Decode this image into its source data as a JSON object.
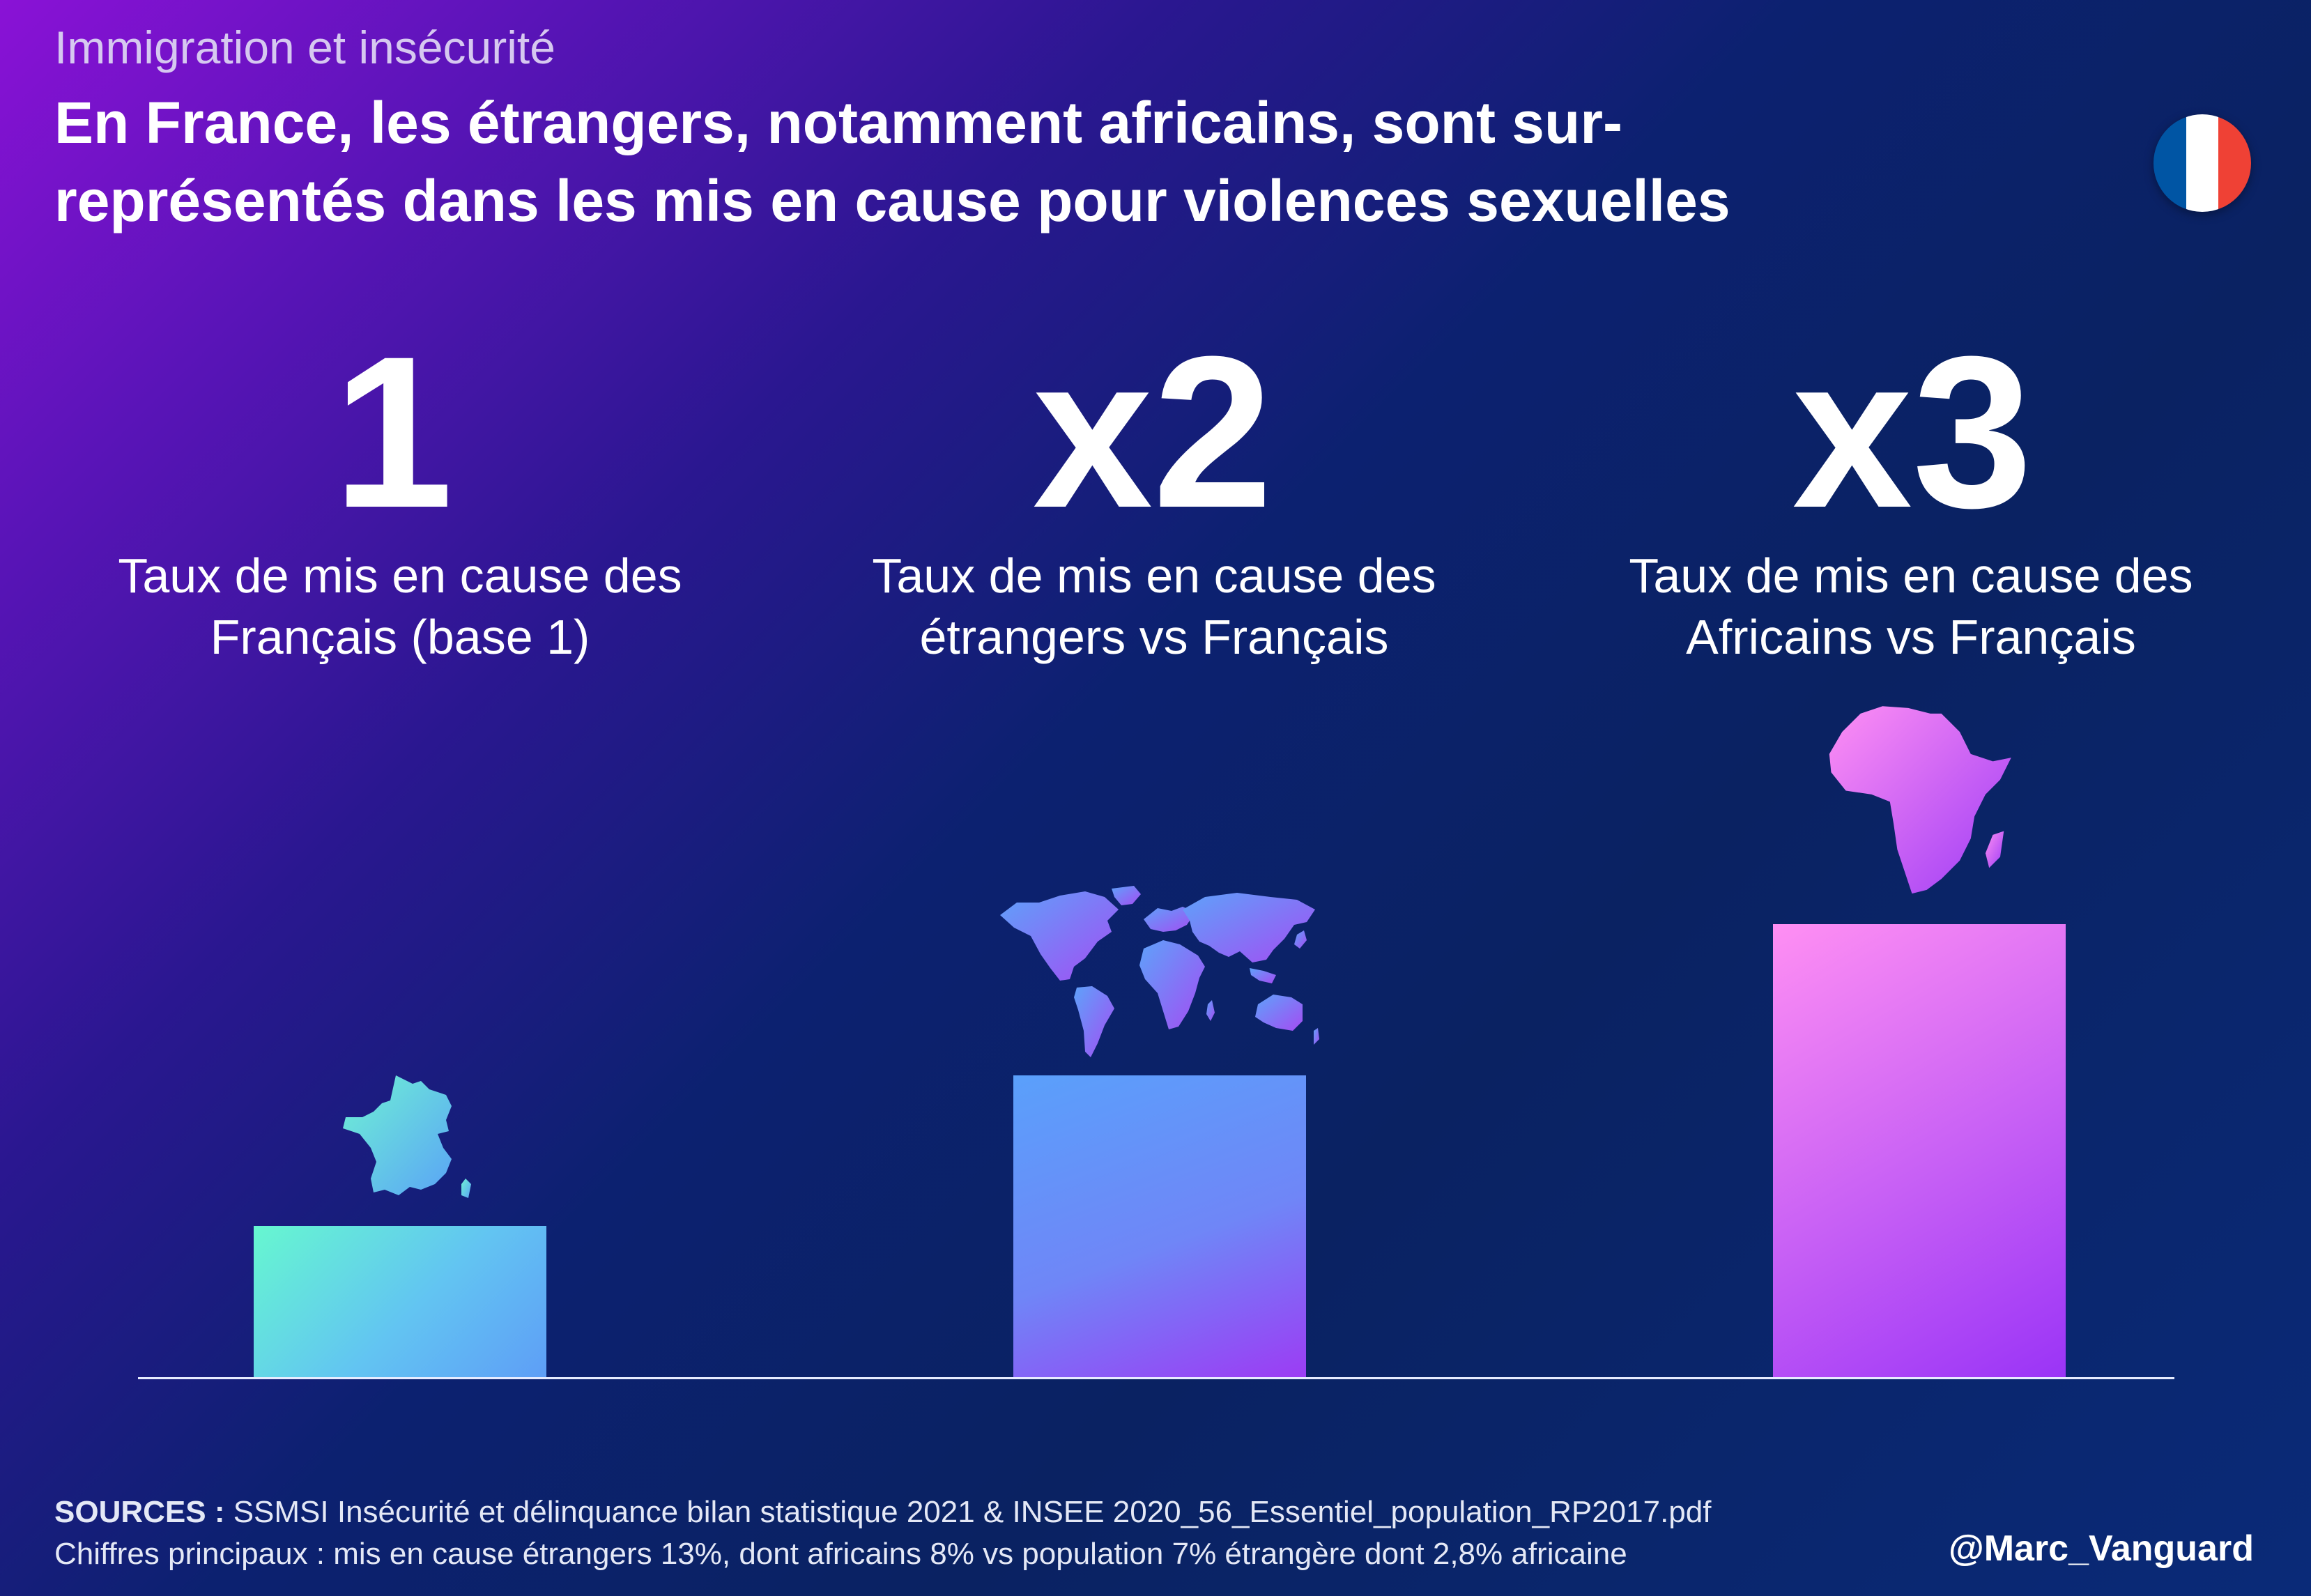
{
  "header": {
    "subtitle": "Immigration et insécurité",
    "title": "En France, les étrangers, notamment africains, sont sur-représentés dans les mis en cause pour violences sexuelles"
  },
  "flag_colors": [
    "#0055a4",
    "#ffffff",
    "#ef4135"
  ],
  "chart_data": {
    "type": "bar",
    "title": "",
    "xlabel": "",
    "ylabel": "",
    "ylim": [
      0,
      3.3
    ],
    "grid": false,
    "categories": [
      "Taux de mis en cause des Français (base 1)",
      "Taux de mis en cause des étrangers vs Français",
      "Taux de mis en cause des Africains vs Français"
    ],
    "values": [
      1,
      2,
      3
    ],
    "data_labels": [
      "1",
      "x2",
      "x3"
    ],
    "icons": [
      "france-map-icon",
      "world-map-icon",
      "africa-map-icon"
    ],
    "colors": [
      "#66f7d0",
      "#6f86f7",
      "#d36af6"
    ]
  },
  "footer": {
    "sources_label": "SOURCES :",
    "sources_text": " SSMSI Insécurité et délinquance bilan statistique 2021 & INSEE 2020_56_Essentiel_population_RP2017.pdf",
    "figures_text": "Chiffres principaux : mis en cause étrangers 13%, dont africains 8% vs population 7% étrangère dont 2,8% africaine",
    "handle": "@Marc_Vanguard"
  }
}
